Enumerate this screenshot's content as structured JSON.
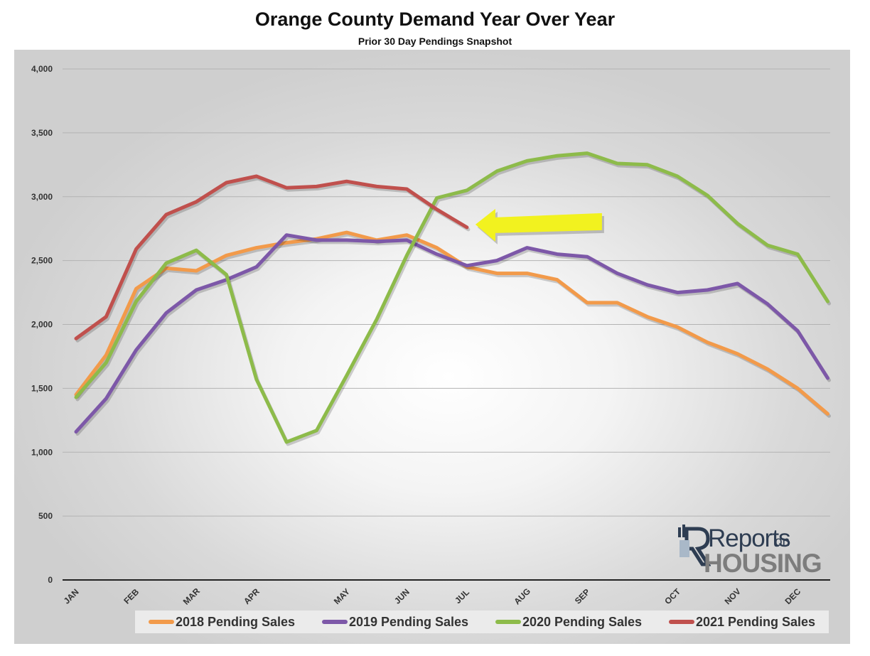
{
  "header": {
    "title": "Orange County Demand Year Over Year",
    "subtitle": "Prior 30 Day Pendings Snapshot"
  },
  "logo": {
    "top_text": "Reports",
    "on_text": "on",
    "bottom_text": "HOUSING"
  },
  "colors": {
    "series_2018": "#f29a4a",
    "series_2019": "#7d58a8",
    "series_2020": "#8dbb4a",
    "series_2021": "#c0504d",
    "arrow": "#f2f21f",
    "gridline": "#b3b3b3"
  },
  "chart_data": {
    "type": "line",
    "title": "Orange County Demand Year Over Year",
    "subtitle": "Prior 30 Day Pendings Snapshot",
    "xlabel": "",
    "ylabel": "",
    "ylim": [
      0,
      4000
    ],
    "yticks": [
      0,
      500,
      1000,
      1500,
      2000,
      2500,
      3000,
      3500,
      4000
    ],
    "ytick_labels": [
      "0",
      "500",
      "1,000",
      "1,500",
      "2,000",
      "2,500",
      "3,000",
      "3,500",
      "4,000"
    ],
    "month_labels": [
      "JAN",
      "FEB",
      "MAR",
      "APR",
      "MAY",
      "JUN",
      "JUL",
      "AUG",
      "SEP",
      "OCT",
      "NOV",
      "DEC"
    ],
    "month_label_positions": [
      0,
      2,
      4,
      6,
      9,
      11,
      13,
      15,
      17,
      20,
      22,
      24
    ],
    "num_points": 26,
    "grid": true,
    "legend_position": "bottom",
    "series": [
      {
        "name": "2018 Pending Sales",
        "values": [
          1450,
          1760,
          2280,
          2440,
          2420,
          2540,
          2600,
          2640,
          2670,
          2720,
          2660,
          2700,
          2600,
          2450,
          2400,
          2400,
          2350,
          2170,
          2170,
          2060,
          1980,
          1860,
          1770,
          1650,
          1500,
          1300
        ]
      },
      {
        "name": "2019 Pending Sales",
        "values": [
          1160,
          1420,
          1800,
          2090,
          2270,
          2350,
          2450,
          2700,
          2660,
          2660,
          2650,
          2660,
          2550,
          2460,
          2500,
          2600,
          2550,
          2530,
          2400,
          2310,
          2250,
          2270,
          2320,
          2160,
          1950,
          1580
        ]
      },
      {
        "name": "2020 Pending Sales",
        "values": [
          1430,
          1700,
          2180,
          2480,
          2580,
          2390,
          1570,
          1080,
          1170,
          1600,
          2040,
          2540,
          2990,
          3050,
          3200,
          3280,
          3320,
          3340,
          3260,
          3250,
          3160,
          3010,
          2790,
          2620,
          2550,
          2180
        ]
      },
      {
        "name": "2021 Pending Sales",
        "values": [
          1890,
          2060,
          2590,
          2860,
          2960,
          3110,
          3160,
          3070,
          3080,
          3120,
          3080,
          3060,
          2900,
          2760
        ]
      }
    ]
  }
}
